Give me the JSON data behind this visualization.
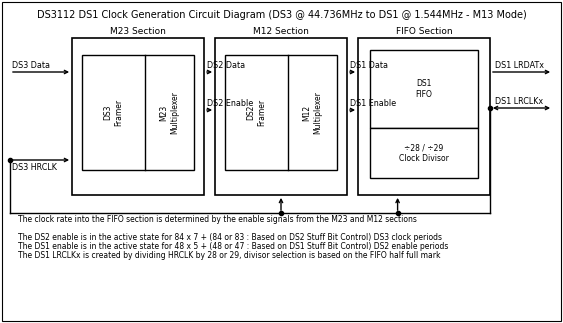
{
  "title": "DS3112 DS1 Clock Generation Circuit Diagram (DS3 @ 44.736MHz to DS1 @ 1.544MHz - M13 Mode)",
  "title_fontsize": 7.0,
  "bg_color": "#ffffff",
  "footnote_line1": "The clock rate into the FIFO section is determined by the enable signals from the M23 and M12 sections",
  "footnote_line2": "The DS2 enable is in the active state for 84 x 7 + (84 or 83 : Based on DS2 Stuff Bit Control) DS3 clock periods",
  "footnote_line3": "The DS1 enable is in the active state for 48 x 5 + (48 or 47 : Based on DS1 Stuff Bit Control) DS2 enable periods",
  "footnote_line4": "The DS1 LRCLKx is created by dividing HRCLK by 28 or 29, divisor selection is based on the FIFO half full mark",
  "footnote_fontsize": 5.5,
  "section_fontsize": 6.5,
  "label_fontsize": 5.8,
  "inner_label_fontsize": 5.5,
  "divider_text": "÷28 / ÷29\nClock Divisor"
}
